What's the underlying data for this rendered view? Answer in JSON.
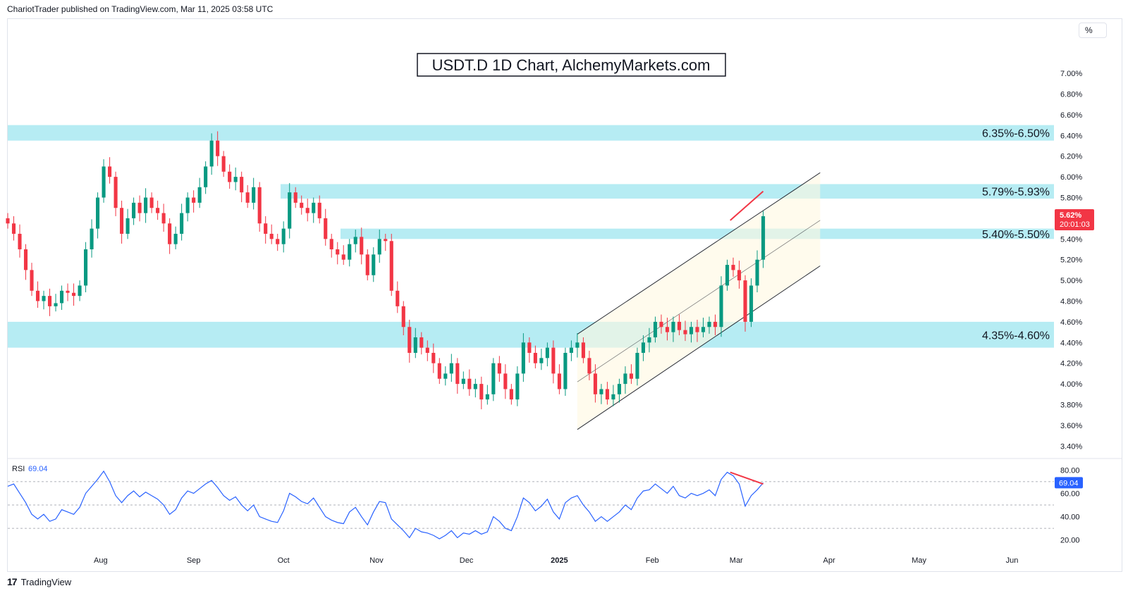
{
  "header": {
    "publisher": "ChariotTrader published on TradingView.com, Mar 11, 2025 03:58 UTC"
  },
  "footer": {
    "brand": "TradingView",
    "logo_glyph": "17"
  },
  "axis_unit_button": "%",
  "colors": {
    "up": "#089981",
    "down": "#f23645",
    "zone": "#b2ebf2",
    "rsi_line": "#2962ff",
    "rsi_bg": "#ede7f6",
    "divergence": "#f23645",
    "price_label": "#f23645",
    "rsi_label": "#2962ff"
  },
  "chart_data": [
    {
      "type": "candlestick",
      "title": "USDT.D 1D Chart, AlchemyMarkets.com",
      "ylabel": "%",
      "ylim": [
        3.3,
        7.3
      ],
      "y_ticks": [
        "7.00%",
        "6.80%",
        "6.60%",
        "6.40%",
        "6.20%",
        "6.00%",
        "5.80%",
        "5.60%",
        "5.40%",
        "5.20%",
        "5.00%",
        "4.80%",
        "4.60%",
        "4.40%",
        "4.20%",
        "4.00%",
        "3.80%",
        "3.60%",
        "3.40%"
      ],
      "y_tick_values": [
        7.0,
        6.8,
        6.6,
        6.4,
        6.2,
        6.0,
        5.8,
        5.6,
        5.4,
        5.2,
        5.0,
        4.8,
        4.6,
        4.4,
        4.2,
        4.0,
        3.8,
        3.6,
        3.4
      ],
      "x_labels": [
        {
          "label": "Aug",
          "date": "2024-08-01"
        },
        {
          "label": "Sep",
          "date": "2024-09-01"
        },
        {
          "label": "Oct",
          "date": "2024-10-01"
        },
        {
          "label": "Nov",
          "date": "2024-11-01"
        },
        {
          "label": "Dec",
          "date": "2024-12-01"
        },
        {
          "label": "2025",
          "date": "2025-01-01"
        },
        {
          "label": "Feb",
          "date": "2025-02-01"
        },
        {
          "label": "Mar",
          "date": "2025-03-01"
        },
        {
          "label": "Apr",
          "date": "2025-04-01"
        },
        {
          "label": "May",
          "date": "2025-05-01"
        },
        {
          "label": "Jun",
          "date": "2025-06-01"
        }
      ],
      "x_range": [
        "2024-07-01",
        "2025-06-15"
      ],
      "zones": [
        {
          "label": "6.35%-6.50%",
          "low": 6.35,
          "high": 6.5,
          "start": "2024-07-01"
        },
        {
          "label": "5.79%-5.93%",
          "low": 5.79,
          "high": 5.93,
          "start": "2024-09-30"
        },
        {
          "label": "5.40%-5.50%",
          "low": 5.4,
          "high": 5.5,
          "start": "2024-10-20"
        },
        {
          "label": "4.35%-4.60%",
          "low": 4.35,
          "high": 4.6,
          "start": "2024-07-01"
        }
      ],
      "channel": {
        "start": "2025-01-07",
        "end": "2025-03-29",
        "upper": [
          4.48,
          6.04
        ],
        "middle": [
          4.02,
          5.58
        ],
        "lower": [
          3.56,
          5.14
        ]
      },
      "divergence_price": {
        "start": "2025-02-27",
        "end": "2025-03-10",
        "values": [
          5.58,
          5.86
        ]
      },
      "current_price": {
        "value": "5.62%",
        "countdown": "20:01:03",
        "y": 5.62
      },
      "closes": [
        [
          "2024-07-01",
          5.55
        ],
        [
          "2024-07-03",
          5.45
        ],
        [
          "2024-07-05",
          5.3
        ],
        [
          "2024-07-07",
          5.1
        ],
        [
          "2024-07-09",
          4.9
        ],
        [
          "2024-07-11",
          4.8
        ],
        [
          "2024-07-13",
          4.85
        ],
        [
          "2024-07-15",
          4.75
        ],
        [
          "2024-07-17",
          4.78
        ],
        [
          "2024-07-19",
          4.9
        ],
        [
          "2024-07-21",
          4.88
        ],
        [
          "2024-07-23",
          4.85
        ],
        [
          "2024-07-25",
          4.95
        ],
        [
          "2024-07-27",
          5.3
        ],
        [
          "2024-07-29",
          5.5
        ],
        [
          "2024-07-31",
          5.8
        ],
        [
          "2024-08-02",
          6.1
        ],
        [
          "2024-08-04",
          6.0
        ],
        [
          "2024-08-06",
          5.7
        ],
        [
          "2024-08-08",
          5.45
        ],
        [
          "2024-08-10",
          5.6
        ],
        [
          "2024-08-12",
          5.75
        ],
        [
          "2024-08-14",
          5.65
        ],
        [
          "2024-08-16",
          5.8
        ],
        [
          "2024-08-18",
          5.7
        ],
        [
          "2024-08-20",
          5.65
        ],
        [
          "2024-08-22",
          5.55
        ],
        [
          "2024-08-24",
          5.35
        ],
        [
          "2024-08-26",
          5.45
        ],
        [
          "2024-08-28",
          5.65
        ],
        [
          "2024-08-30",
          5.8
        ],
        [
          "2024-09-01",
          5.75
        ],
        [
          "2024-09-03",
          5.9
        ],
        [
          "2024-09-05",
          6.1
        ],
        [
          "2024-09-07",
          6.35
        ],
        [
          "2024-09-09",
          6.2
        ],
        [
          "2024-09-11",
          6.05
        ],
        [
          "2024-09-13",
          5.95
        ],
        [
          "2024-09-15",
          6.0
        ],
        [
          "2024-09-17",
          5.85
        ],
        [
          "2024-09-19",
          5.75
        ],
        [
          "2024-09-21",
          5.9
        ],
        [
          "2024-09-23",
          5.55
        ],
        [
          "2024-09-25",
          5.45
        ],
        [
          "2024-09-27",
          5.4
        ],
        [
          "2024-09-29",
          5.35
        ],
        [
          "2024-10-01",
          5.5
        ],
        [
          "2024-10-03",
          5.85
        ],
        [
          "2024-10-05",
          5.75
        ],
        [
          "2024-10-07",
          5.7
        ],
        [
          "2024-10-09",
          5.65
        ],
        [
          "2024-10-11",
          5.75
        ],
        [
          "2024-10-13",
          5.6
        ],
        [
          "2024-10-15",
          5.4
        ],
        [
          "2024-10-17",
          5.3
        ],
        [
          "2024-10-19",
          5.25
        ],
        [
          "2024-10-21",
          5.2
        ],
        [
          "2024-10-23",
          5.35
        ],
        [
          "2024-10-25",
          5.42
        ],
        [
          "2024-10-27",
          5.25
        ],
        [
          "2024-10-29",
          5.05
        ],
        [
          "2024-10-31",
          5.25
        ],
        [
          "2024-11-02",
          5.4
        ],
        [
          "2024-11-04",
          5.38
        ],
        [
          "2024-11-06",
          4.9
        ],
        [
          "2024-11-08",
          4.75
        ],
        [
          "2024-11-10",
          4.55
        ],
        [
          "2024-11-12",
          4.3
        ],
        [
          "2024-11-14",
          4.45
        ],
        [
          "2024-11-16",
          4.35
        ],
        [
          "2024-11-18",
          4.3
        ],
        [
          "2024-11-20",
          4.2
        ],
        [
          "2024-11-22",
          4.05
        ],
        [
          "2024-11-24",
          4.1
        ],
        [
          "2024-11-26",
          4.2
        ],
        [
          "2024-11-28",
          4.0
        ],
        [
          "2024-11-30",
          4.05
        ],
        [
          "2024-12-02",
          3.95
        ],
        [
          "2024-12-04",
          4.0
        ],
        [
          "2024-12-06",
          3.85
        ],
        [
          "2024-12-08",
          3.9
        ],
        [
          "2024-12-10",
          4.2
        ],
        [
          "2024-12-12",
          4.1
        ],
        [
          "2024-12-14",
          3.95
        ],
        [
          "2024-12-16",
          3.85
        ],
        [
          "2024-12-18",
          4.1
        ],
        [
          "2024-12-20",
          4.4
        ],
        [
          "2024-12-22",
          4.3
        ],
        [
          "2024-12-24",
          4.2
        ],
        [
          "2024-12-26",
          4.25
        ],
        [
          "2024-12-28",
          4.35
        ],
        [
          "2024-12-30",
          4.1
        ],
        [
          "2025-01-01",
          3.95
        ],
        [
          "2025-01-03",
          4.3
        ],
        [
          "2025-01-05",
          4.35
        ],
        [
          "2025-01-07",
          4.4
        ],
        [
          "2025-01-09",
          4.25
        ],
        [
          "2025-01-11",
          4.1
        ],
        [
          "2025-01-13",
          3.9
        ],
        [
          "2025-01-15",
          3.95
        ],
        [
          "2025-01-17",
          3.85
        ],
        [
          "2025-01-19",
          3.9
        ],
        [
          "2025-01-21",
          4.0
        ],
        [
          "2025-01-23",
          4.1
        ],
        [
          "2025-01-25",
          4.05
        ],
        [
          "2025-01-27",
          4.3
        ],
        [
          "2025-01-29",
          4.4
        ],
        [
          "2025-01-31",
          4.45
        ],
        [
          "2025-02-02",
          4.6
        ],
        [
          "2025-02-04",
          4.55
        ],
        [
          "2025-02-06",
          4.5
        ],
        [
          "2025-02-08",
          4.6
        ],
        [
          "2025-02-10",
          4.52
        ],
        [
          "2025-02-12",
          4.48
        ],
        [
          "2025-02-14",
          4.55
        ],
        [
          "2025-02-16",
          4.5
        ],
        [
          "2025-02-18",
          4.55
        ],
        [
          "2025-02-20",
          4.6
        ],
        [
          "2025-02-22",
          4.55
        ],
        [
          "2025-02-24",
          4.95
        ],
        [
          "2025-02-26",
          5.15
        ],
        [
          "2025-02-28",
          5.1
        ],
        [
          "2025-03-02",
          5.0
        ],
        [
          "2025-03-04",
          4.6
        ],
        [
          "2025-03-06",
          4.95
        ],
        [
          "2025-03-08",
          5.2
        ],
        [
          "2025-03-10",
          5.62
        ]
      ]
    },
    {
      "type": "line",
      "indicator": "RSI",
      "label": "RSI",
      "current_value": "69.04",
      "current_y": 69.04,
      "ylim": [
        12,
        88
      ],
      "y_ticks": [
        "80.00",
        "60.00",
        "40.00",
        "20.00"
      ],
      "y_tick_values": [
        80,
        60,
        40,
        20
      ],
      "bands": [
        70,
        50,
        30
      ],
      "divergence_rsi": {
        "start": "2025-02-27",
        "end": "2025-03-10",
        "values": [
          78,
          68
        ]
      },
      "values": [
        [
          "2024-07-01",
          66
        ],
        [
          "2024-07-03",
          68
        ],
        [
          "2024-07-05",
          60
        ],
        [
          "2024-07-07",
          52
        ],
        [
          "2024-07-09",
          42
        ],
        [
          "2024-07-11",
          38
        ],
        [
          "2024-07-13",
          42
        ],
        [
          "2024-07-15",
          36
        ],
        [
          "2024-07-17",
          38
        ],
        [
          "2024-07-19",
          46
        ],
        [
          "2024-07-21",
          44
        ],
        [
          "2024-07-23",
          42
        ],
        [
          "2024-07-25",
          48
        ],
        [
          "2024-07-27",
          60
        ],
        [
          "2024-07-29",
          66
        ],
        [
          "2024-07-31",
          72
        ],
        [
          "2024-08-02",
          79
        ],
        [
          "2024-08-04",
          70
        ],
        [
          "2024-08-06",
          58
        ],
        [
          "2024-08-08",
          52
        ],
        [
          "2024-08-10",
          58
        ],
        [
          "2024-08-12",
          62
        ],
        [
          "2024-08-14",
          57
        ],
        [
          "2024-08-16",
          61
        ],
        [
          "2024-08-18",
          58
        ],
        [
          "2024-08-20",
          55
        ],
        [
          "2024-08-22",
          50
        ],
        [
          "2024-08-24",
          42
        ],
        [
          "2024-08-26",
          46
        ],
        [
          "2024-08-28",
          56
        ],
        [
          "2024-08-30",
          62
        ],
        [
          "2024-09-01",
          60
        ],
        [
          "2024-09-03",
          64
        ],
        [
          "2024-09-05",
          68
        ],
        [
          "2024-09-07",
          71
        ],
        [
          "2024-09-09",
          65
        ],
        [
          "2024-09-11",
          58
        ],
        [
          "2024-09-13",
          54
        ],
        [
          "2024-09-15",
          57
        ],
        [
          "2024-09-17",
          50
        ],
        [
          "2024-09-19",
          45
        ],
        [
          "2024-09-21",
          50
        ],
        [
          "2024-09-23",
          40
        ],
        [
          "2024-09-25",
          38
        ],
        [
          "2024-09-27",
          36
        ],
        [
          "2024-09-29",
          35
        ],
        [
          "2024-10-01",
          45
        ],
        [
          "2024-10-03",
          60
        ],
        [
          "2024-10-05",
          57
        ],
        [
          "2024-10-07",
          53
        ],
        [
          "2024-10-09",
          51
        ],
        [
          "2024-10-11",
          56
        ],
        [
          "2024-10-13",
          48
        ],
        [
          "2024-10-15",
          40
        ],
        [
          "2024-10-17",
          37
        ],
        [
          "2024-10-19",
          35
        ],
        [
          "2024-10-21",
          34
        ],
        [
          "2024-10-23",
          44
        ],
        [
          "2024-10-25",
          48
        ],
        [
          "2024-10-27",
          40
        ],
        [
          "2024-10-29",
          33
        ],
        [
          "2024-10-31",
          44
        ],
        [
          "2024-11-02",
          53
        ],
        [
          "2024-11-04",
          52
        ],
        [
          "2024-11-06",
          38
        ],
        [
          "2024-11-08",
          33
        ],
        [
          "2024-11-10",
          28
        ],
        [
          "2024-11-12",
          22
        ],
        [
          "2024-11-14",
          30
        ],
        [
          "2024-11-16",
          27
        ],
        [
          "2024-11-18",
          26
        ],
        [
          "2024-11-20",
          24
        ],
        [
          "2024-11-22",
          21
        ],
        [
          "2024-11-24",
          24
        ],
        [
          "2024-11-26",
          28
        ],
        [
          "2024-11-28",
          22
        ],
        [
          "2024-11-30",
          26
        ],
        [
          "2024-12-02",
          25
        ],
        [
          "2024-12-04",
          28
        ],
        [
          "2024-12-06",
          25
        ],
        [
          "2024-12-08",
          27
        ],
        [
          "2024-12-10",
          40
        ],
        [
          "2024-12-12",
          36
        ],
        [
          "2024-12-14",
          30
        ],
        [
          "2024-12-16",
          28
        ],
        [
          "2024-12-18",
          40
        ],
        [
          "2024-12-20",
          56
        ],
        [
          "2024-12-22",
          52
        ],
        [
          "2024-12-24",
          45
        ],
        [
          "2024-12-26",
          49
        ],
        [
          "2024-12-28",
          55
        ],
        [
          "2024-12-30",
          44
        ],
        [
          "2025-01-01",
          38
        ],
        [
          "2025-01-03",
          52
        ],
        [
          "2025-01-05",
          56
        ],
        [
          "2025-01-07",
          58
        ],
        [
          "2025-01-09",
          50
        ],
        [
          "2025-01-11",
          44
        ],
        [
          "2025-01-13",
          36
        ],
        [
          "2025-01-15",
          40
        ],
        [
          "2025-01-17",
          36
        ],
        [
          "2025-01-19",
          40
        ],
        [
          "2025-01-21",
          44
        ],
        [
          "2025-01-23",
          50
        ],
        [
          "2025-01-25",
          46
        ],
        [
          "2025-01-27",
          56
        ],
        [
          "2025-01-29",
          62
        ],
        [
          "2025-01-31",
          63
        ],
        [
          "2025-02-02",
          68
        ],
        [
          "2025-02-04",
          64
        ],
        [
          "2025-02-06",
          60
        ],
        [
          "2025-02-08",
          66
        ],
        [
          "2025-02-10",
          58
        ],
        [
          "2025-02-12",
          56
        ],
        [
          "2025-02-14",
          60
        ],
        [
          "2025-02-16",
          58
        ],
        [
          "2025-02-18",
          60
        ],
        [
          "2025-02-20",
          63
        ],
        [
          "2025-02-22",
          58
        ],
        [
          "2025-02-24",
          72
        ],
        [
          "2025-02-26",
          78
        ],
        [
          "2025-02-28",
          75
        ],
        [
          "2025-03-02",
          68
        ],
        [
          "2025-03-04",
          49
        ],
        [
          "2025-03-06",
          58
        ],
        [
          "2025-03-08",
          63
        ],
        [
          "2025-03-10",
          69
        ]
      ]
    }
  ]
}
